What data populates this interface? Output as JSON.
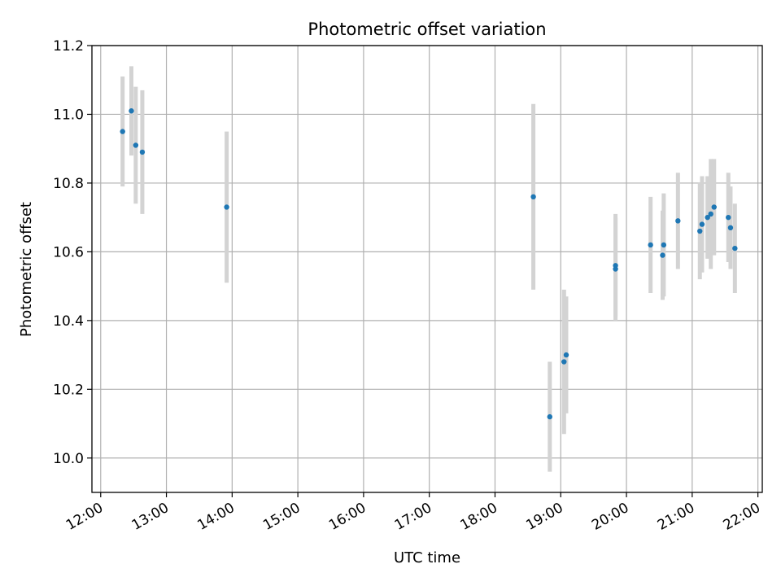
{
  "chart_data": {
    "type": "scatter",
    "title": "Photometric offset variation",
    "xlabel": "UTC time",
    "ylabel": "Photometric offset",
    "x_is_time": true,
    "xlim": [
      "11:52",
      "22:04"
    ],
    "ylim": [
      9.9,
      11.2
    ],
    "grid": true,
    "legend": "none",
    "x_ticks": [
      "12:00",
      "13:00",
      "14:00",
      "15:00",
      "16:00",
      "17:00",
      "18:00",
      "19:00",
      "20:00",
      "21:00",
      "22:00"
    ],
    "y_ticks": [
      "10.0",
      "10.2",
      "10.4",
      "10.6",
      "10.8",
      "11.0",
      "11.2"
    ],
    "colors": {
      "points": "#1f77b4",
      "errorbars": "#d3d3d3",
      "grid": "#b0b0b0"
    },
    "series": [
      {
        "x": [
          "12:20",
          "12:28",
          "12:32",
          "12:38",
          "13:55",
          "18:35",
          "18:50",
          "19:03",
          "19:05",
          "19:50",
          "19:50",
          "20:22",
          "20:33",
          "20:34",
          "20:47",
          "21:07",
          "21:09",
          "21:14",
          "21:17",
          "21:20",
          "21:33",
          "21:35",
          "21:39"
        ],
        "y": [
          10.95,
          11.01,
          10.91,
          10.89,
          10.73,
          10.76,
          10.12,
          10.28,
          10.3,
          10.56,
          10.55,
          10.62,
          10.59,
          10.62,
          10.69,
          10.66,
          10.68,
          10.7,
          10.71,
          10.73,
          10.7,
          10.67,
          10.61
        ],
        "yerr": [
          0.16,
          0.13,
          0.17,
          0.18,
          0.22,
          0.27,
          0.16,
          0.21,
          0.17,
          0.15,
          0.15,
          0.14,
          0.13,
          0.15,
          0.14,
          0.14,
          0.14,
          0.12,
          0.16,
          0.14,
          0.13,
          0.12,
          0.13
        ]
      }
    ]
  }
}
